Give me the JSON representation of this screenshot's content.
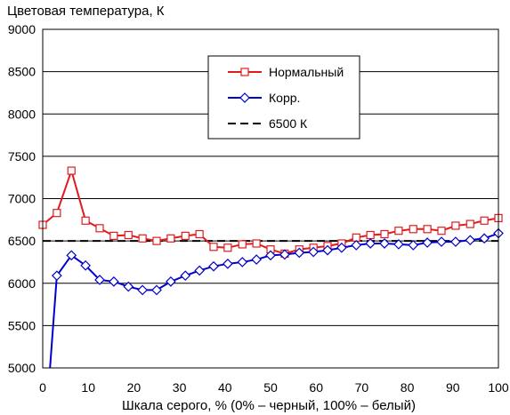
{
  "chart_data": {
    "type": "line",
    "title": "",
    "ylabel": "Цветовая температура, К",
    "xlabel": "Шкала серого, % (0% – черный, 100% – белый)",
    "xlim": [
      0,
      100
    ],
    "ylim": [
      5000,
      9000
    ],
    "xticks": [
      0,
      10,
      20,
      30,
      40,
      50,
      60,
      70,
      80,
      90,
      100
    ],
    "yticks": [
      5000,
      5500,
      6000,
      6500,
      7000,
      7500,
      8000,
      8500,
      9000
    ],
    "grid": "horizontal",
    "legend_position": "top-right",
    "series": [
      {
        "name": "Нормальный",
        "color": "#e31a1c",
        "marker": "square",
        "x": [
          0,
          3.1,
          6.3,
          9.4,
          12.5,
          15.6,
          18.8,
          21.9,
          25,
          28.1,
          31.3,
          34.4,
          37.5,
          40.6,
          43.8,
          46.9,
          50,
          53.1,
          56.3,
          59.4,
          62.5,
          65.6,
          68.8,
          71.9,
          75,
          78.1,
          81.3,
          84.4,
          87.5,
          90.6,
          93.8,
          96.9,
          100
        ],
        "values": [
          6690,
          6830,
          7330,
          6740,
          6650,
          6560,
          6570,
          6530,
          6500,
          6530,
          6560,
          6580,
          6430,
          6420,
          6460,
          6470,
          6400,
          6350,
          6400,
          6420,
          6440,
          6470,
          6540,
          6570,
          6580,
          6620,
          6640,
          6640,
          6620,
          6680,
          6700,
          6740,
          6770
        ]
      },
      {
        "name": "Корр.",
        "color": "#0000cc",
        "marker": "diamond",
        "x": [
          1.6,
          3.1,
          6.3,
          9.4,
          12.5,
          15.6,
          18.8,
          21.9,
          25,
          28.1,
          31.3,
          34.4,
          37.5,
          40.6,
          43.8,
          46.9,
          50,
          53.1,
          56.3,
          59.4,
          62.5,
          65.6,
          68.8,
          71.9,
          75,
          78.1,
          81.3,
          84.4,
          87.5,
          90.6,
          93.8,
          96.9,
          100
        ],
        "values": [
          4980,
          6090,
          6330,
          6210,
          6040,
          6020,
          5960,
          5920,
          5920,
          6020,
          6090,
          6150,
          6200,
          6230,
          6250,
          6280,
          6330,
          6340,
          6360,
          6370,
          6390,
          6420,
          6450,
          6470,
          6470,
          6460,
          6450,
          6480,
          6490,
          6490,
          6510,
          6530,
          6590
        ]
      },
      {
        "name": "6500 К",
        "color": "#000000",
        "style": "dashed",
        "x": [
          0,
          100
        ],
        "values": [
          6500,
          6500
        ]
      }
    ]
  }
}
